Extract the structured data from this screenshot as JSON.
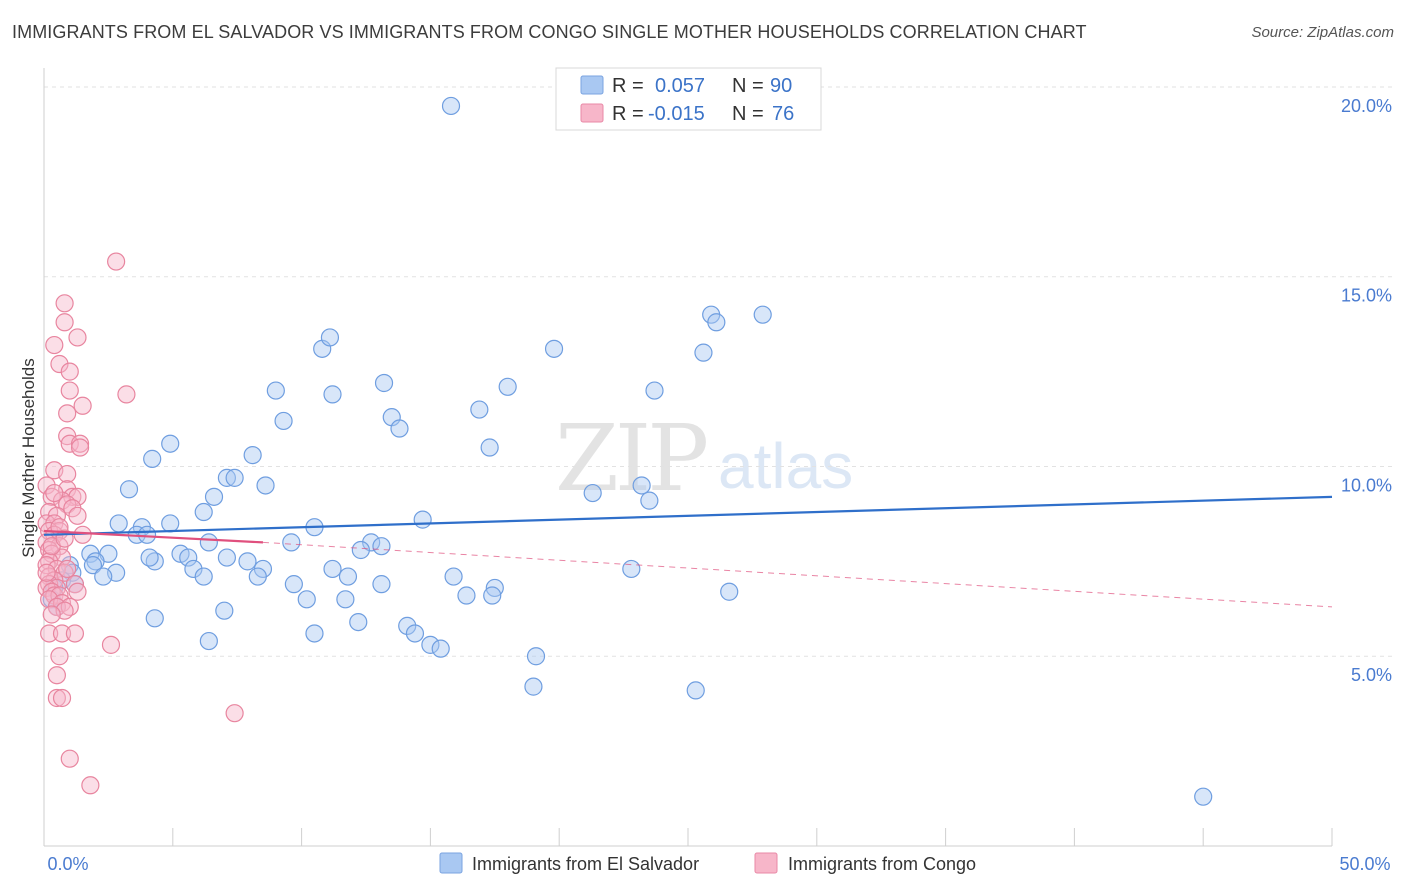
{
  "title": "IMMIGRANTS FROM EL SALVADOR VS IMMIGRANTS FROM CONGO SINGLE MOTHER HOUSEHOLDS CORRELATION CHART",
  "source": "Source: ZipAtlas.com",
  "watermark": {
    "zip": "ZIP",
    "atlas": "atlas"
  },
  "legend": {
    "rows": [
      {
        "r_label": "R = ",
        "r_value": "0.057",
        "n_label": "N = ",
        "n_value": "90",
        "color": "#a9c8f2",
        "stroke": "#7aa3e0"
      },
      {
        "r_label": "R = ",
        "r_value": "-0.015",
        "n_label": "N = ",
        "n_value": "76",
        "color": "#f7b6c9",
        "stroke": "#e888a6"
      }
    ]
  },
  "bottom_legend": [
    {
      "label": "Immigrants from El Salvador",
      "color": "#a9c8f2",
      "stroke": "#7aa3e0"
    },
    {
      "label": "Immigrants from Congo",
      "color": "#f7b6c9",
      "stroke": "#e888a6"
    }
  ],
  "chart_data": {
    "type": "scatter",
    "title": "IMMIGRANTS FROM EL SALVADOR VS IMMIGRANTS FROM CONGO SINGLE MOTHER HOUSEHOLDS CORRELATION CHART",
    "xlabel": "",
    "ylabel": "Single Mother Households",
    "xlim": [
      0,
      50
    ],
    "ylim": [
      0,
      20.5
    ],
    "x_tick_labels": [
      "0.0%",
      "50.0%"
    ],
    "y_ticks": [
      5,
      10,
      15,
      20
    ],
    "y_tick_labels": [
      "5.0%",
      "10.0%",
      "15.0%",
      "20.0%"
    ],
    "grid": true,
    "series": [
      {
        "name": "Immigrants from El Salvador",
        "color": "#a9c8f2",
        "stroke": "#6f9ee0",
        "trend": {
          "x": [
            0,
            50
          ],
          "y": [
            8.2,
            9.2
          ],
          "color": "#2f6fca",
          "style": "solid"
        },
        "points": [
          [
            15.8,
            19.5
          ],
          [
            19.8,
            13.1
          ],
          [
            25.9,
            14.0
          ],
          [
            23.7,
            12.0
          ],
          [
            25.6,
            13.0
          ],
          [
            27.9,
            14.0
          ],
          [
            26.1,
            13.8
          ],
          [
            10.8,
            13.1
          ],
          [
            11.1,
            13.4
          ],
          [
            9.0,
            12.0
          ],
          [
            11.2,
            11.9
          ],
          [
            13.2,
            12.2
          ],
          [
            18.0,
            12.1
          ],
          [
            16.9,
            11.5
          ],
          [
            9.3,
            11.2
          ],
          [
            13.5,
            11.3
          ],
          [
            13.8,
            11.0
          ],
          [
            4.9,
            10.6
          ],
          [
            4.2,
            10.2
          ],
          [
            8.1,
            10.3
          ],
          [
            17.3,
            10.5
          ],
          [
            7.1,
            9.7
          ],
          [
            7.4,
            9.7
          ],
          [
            8.6,
            9.5
          ],
          [
            3.3,
            9.4
          ],
          [
            6.6,
            9.2
          ],
          [
            21.3,
            9.3
          ],
          [
            23.2,
            9.5
          ],
          [
            23.5,
            9.1
          ],
          [
            6.2,
            8.8
          ],
          [
            2.9,
            8.5
          ],
          [
            4.9,
            8.5
          ],
          [
            3.8,
            8.4
          ],
          [
            14.7,
            8.6
          ],
          [
            10.5,
            8.4
          ],
          [
            3.6,
            8.2
          ],
          [
            4.0,
            8.2
          ],
          [
            9.6,
            8.0
          ],
          [
            12.7,
            8.0
          ],
          [
            13.1,
            7.9
          ],
          [
            6.4,
            8.0
          ],
          [
            12.3,
            7.8
          ],
          [
            5.3,
            7.7
          ],
          [
            7.1,
            7.6
          ],
          [
            2.5,
            7.7
          ],
          [
            1.8,
            7.7
          ],
          [
            4.3,
            7.5
          ],
          [
            5.6,
            7.6
          ],
          [
            7.9,
            7.5
          ],
          [
            4.1,
            7.6
          ],
          [
            2.0,
            7.5
          ],
          [
            1.9,
            7.4
          ],
          [
            1.0,
            7.4
          ],
          [
            11.2,
            7.3
          ],
          [
            8.5,
            7.3
          ],
          [
            5.8,
            7.3
          ],
          [
            6.2,
            7.1
          ],
          [
            8.3,
            7.1
          ],
          [
            11.8,
            7.1
          ],
          [
            15.9,
            7.1
          ],
          [
            2.8,
            7.2
          ],
          [
            2.3,
            7.1
          ],
          [
            1.1,
            7.2
          ],
          [
            0.7,
            7.0
          ],
          [
            9.7,
            6.9
          ],
          [
            13.1,
            6.9
          ],
          [
            17.5,
            6.8
          ],
          [
            0.4,
            6.8
          ],
          [
            1.2,
            6.9
          ],
          [
            22.8,
            7.3
          ],
          [
            16.4,
            6.6
          ],
          [
            17.4,
            6.6
          ],
          [
            10.2,
            6.5
          ],
          [
            11.7,
            6.5
          ],
          [
            26.6,
            6.7
          ],
          [
            0.3,
            6.5
          ],
          [
            0.5,
            6.3
          ],
          [
            7.0,
            6.2
          ],
          [
            4.3,
            6.0
          ],
          [
            12.2,
            5.9
          ],
          [
            14.1,
            5.8
          ],
          [
            10.5,
            5.6
          ],
          [
            14.4,
            5.6
          ],
          [
            6.4,
            5.4
          ],
          [
            15.0,
            5.3
          ],
          [
            15.4,
            5.2
          ],
          [
            19.1,
            5.0
          ],
          [
            19.0,
            4.2
          ],
          [
            25.3,
            4.1
          ],
          [
            45.0,
            1.3
          ]
        ]
      },
      {
        "name": "Immigrants from Congo",
        "color": "#f7b6c9",
        "stroke": "#e8859f",
        "trend": {
          "x": [
            0,
            8.5
          ],
          "y": [
            8.3,
            8.0
          ],
          "color": "#e0507e",
          "style": "solid",
          "dashed_x": [
            8.5,
            50
          ],
          "dashed_y": [
            8.0,
            6.3
          ]
        },
        "points": [
          [
            2.8,
            15.4
          ],
          [
            0.8,
            14.3
          ],
          [
            0.8,
            13.8
          ],
          [
            1.3,
            13.4
          ],
          [
            0.4,
            13.2
          ],
          [
            0.6,
            12.7
          ],
          [
            1.0,
            12.5
          ],
          [
            1.0,
            12.0
          ],
          [
            3.2,
            11.9
          ],
          [
            1.5,
            11.6
          ],
          [
            0.9,
            11.4
          ],
          [
            0.9,
            10.8
          ],
          [
            1.0,
            10.6
          ],
          [
            1.4,
            10.6
          ],
          [
            1.4,
            10.5
          ],
          [
            0.4,
            9.9
          ],
          [
            0.9,
            9.8
          ],
          [
            0.1,
            9.5
          ],
          [
            0.9,
            9.4
          ],
          [
            0.3,
            9.2
          ],
          [
            1.1,
            9.2
          ],
          [
            1.3,
            9.2
          ],
          [
            0.7,
            9.1
          ],
          [
            0.9,
            9.0
          ],
          [
            1.1,
            8.9
          ],
          [
            0.2,
            8.8
          ],
          [
            0.5,
            8.7
          ],
          [
            1.3,
            8.7
          ],
          [
            0.1,
            8.5
          ],
          [
            0.4,
            8.5
          ],
          [
            0.6,
            8.3
          ],
          [
            0.2,
            8.3
          ],
          [
            0.4,
            8.2
          ],
          [
            1.5,
            8.2
          ],
          [
            0.1,
            8.0
          ],
          [
            0.6,
            7.9
          ],
          [
            0.2,
            7.8
          ],
          [
            0.3,
            7.7
          ],
          [
            0.7,
            7.6
          ],
          [
            0.2,
            7.5
          ],
          [
            0.1,
            7.4
          ],
          [
            0.5,
            7.3
          ],
          [
            0.8,
            7.2
          ],
          [
            0.2,
            7.1
          ],
          [
            0.4,
            7.0
          ],
          [
            0.2,
            6.9
          ],
          [
            1.2,
            6.9
          ],
          [
            0.5,
            6.8
          ],
          [
            0.1,
            6.8
          ],
          [
            0.3,
            6.7
          ],
          [
            1.3,
            6.7
          ],
          [
            0.4,
            6.6
          ],
          [
            0.6,
            6.6
          ],
          [
            0.2,
            6.5
          ],
          [
            0.7,
            6.4
          ],
          [
            0.5,
            6.3
          ],
          [
            1.0,
            6.3
          ],
          [
            0.8,
            6.2
          ],
          [
            0.2,
            5.6
          ],
          [
            0.7,
            5.6
          ],
          [
            1.2,
            5.6
          ],
          [
            2.6,
            5.3
          ],
          [
            0.6,
            5.0
          ],
          [
            0.5,
            4.5
          ],
          [
            0.5,
            3.9
          ],
          [
            0.7,
            3.9
          ],
          [
            7.4,
            3.5
          ],
          [
            1.0,
            2.3
          ],
          [
            1.8,
            1.6
          ],
          [
            0.1,
            7.2
          ],
          [
            0.3,
            7.9
          ],
          [
            0.6,
            8.4
          ],
          [
            0.9,
            7.3
          ],
          [
            0.3,
            6.1
          ],
          [
            0.8,
            8.1
          ],
          [
            0.4,
            9.3
          ]
        ]
      }
    ]
  }
}
